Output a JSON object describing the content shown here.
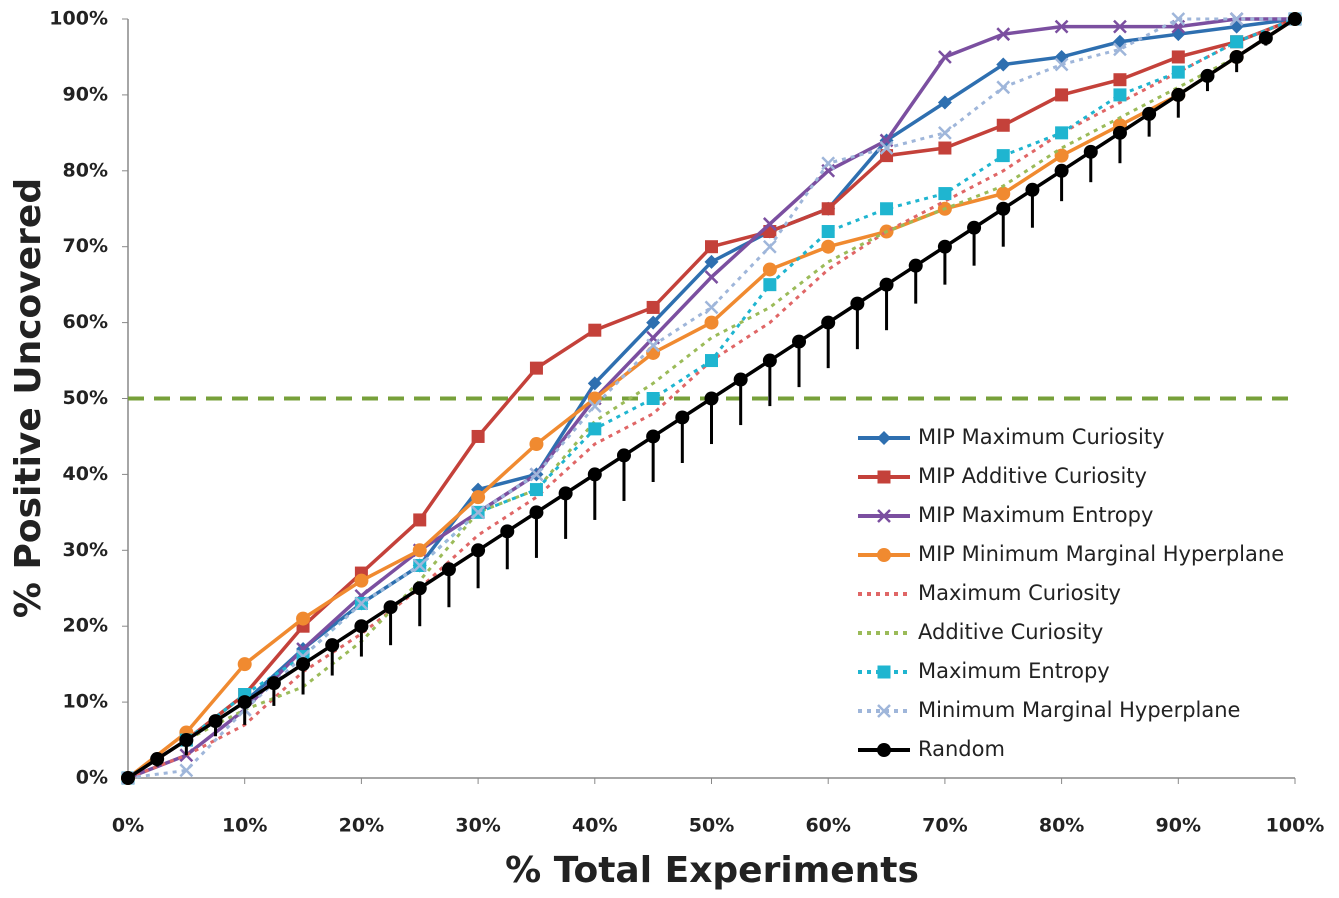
{
  "chart_data": {
    "type": "line",
    "xlabel": "% Total Experiments",
    "ylabel": "% Positive Uncovered",
    "xlim": [
      0,
      100
    ],
    "ylim": [
      0,
      100
    ],
    "xticks": [
      {
        "value": 0,
        "label": "0%"
      },
      {
        "value": 10,
        "label": "10%"
      },
      {
        "value": 20,
        "label": "20%"
      },
      {
        "value": 30,
        "label": "30%"
      },
      {
        "value": 40,
        "label": "40%"
      },
      {
        "value": 50,
        "label": "50%"
      },
      {
        "value": 60,
        "label": "60%"
      },
      {
        "value": 70,
        "label": "70%"
      },
      {
        "value": 80,
        "label": "80%"
      },
      {
        "value": 90,
        "label": "90%"
      },
      {
        "value": 100,
        "label": "100%"
      }
    ],
    "yticks": [
      {
        "value": 0,
        "label": "0%"
      },
      {
        "value": 10,
        "label": "10%"
      },
      {
        "value": 20,
        "label": "20%"
      },
      {
        "value": 30,
        "label": "30%"
      },
      {
        "value": 40,
        "label": "40%"
      },
      {
        "value": 50,
        "label": "50%"
      },
      {
        "value": 60,
        "label": "60%"
      },
      {
        "value": 70,
        "label": "70%"
      },
      {
        "value": 80,
        "label": "80%"
      },
      {
        "value": 90,
        "label": "90%"
      },
      {
        "value": 100,
        "label": "100%"
      }
    ],
    "reference_line": {
      "value": 50,
      "color": "#77a03a"
    },
    "x": [
      0,
      5,
      10,
      15,
      20,
      25,
      30,
      35,
      40,
      45,
      50,
      55,
      60,
      65,
      70,
      75,
      80,
      85,
      90,
      95,
      100
    ],
    "series": [
      {
        "name": "MIP Maximum Curiosity",
        "color": "#2e6fb0",
        "marker": "diamond",
        "dash": "solid",
        "values": [
          0,
          5,
          10,
          17,
          23,
          28,
          38,
          40,
          52,
          60,
          68,
          72,
          75,
          84,
          89,
          94,
          95,
          97,
          98,
          99,
          100
        ]
      },
      {
        "name": "MIP Additive Curiosity",
        "color": "#c4413a",
        "marker": "square",
        "dash": "solid",
        "values": [
          0,
          5,
          11,
          20,
          27,
          34,
          45,
          54,
          59,
          62,
          70,
          72,
          75,
          82,
          83,
          86,
          90,
          92,
          95,
          97,
          100
        ]
      },
      {
        "name": "MIP Maximum Entropy",
        "color": "#7b4fa0",
        "marker": "x",
        "dash": "solid",
        "values": [
          0,
          3,
          9,
          17,
          24,
          30,
          35,
          40,
          50,
          58,
          66,
          73,
          80,
          84,
          95,
          98,
          99,
          99,
          99,
          100,
          100
        ]
      },
      {
        "name": "MIP Minimum Marginal Hyperplane",
        "color": "#f08a30",
        "marker": "circle",
        "dash": "solid",
        "values": [
          0,
          6,
          15,
          21,
          26,
          30,
          37,
          44,
          50,
          56,
          60,
          67,
          70,
          72,
          75,
          77,
          82,
          86,
          90,
          95,
          100
        ]
      },
      {
        "name": "Maximum Curiosity",
        "color": "#e06666",
        "marker": "none",
        "dash": "dotted",
        "values": [
          0,
          3,
          7,
          14,
          19,
          25,
          32,
          37,
          44,
          48,
          55,
          60,
          67,
          72,
          76,
          80,
          85,
          89,
          93,
          97,
          100
        ]
      },
      {
        "name": "Additive Curiosity",
        "color": "#9bbb59",
        "marker": "none",
        "dash": "dotted",
        "values": [
          0,
          5,
          9,
          12,
          18,
          26,
          35,
          38,
          47,
          52,
          58,
          62,
          68,
          72,
          75,
          78,
          83,
          87,
          91,
          95,
          100
        ]
      },
      {
        "name": "Maximum Entropy",
        "color": "#1fb5d0",
        "marker": "square",
        "dash": "dotted",
        "values": [
          0,
          5,
          11,
          16,
          23,
          28,
          35,
          38,
          46,
          50,
          55,
          65,
          72,
          75,
          77,
          82,
          85,
          90,
          93,
          97,
          100
        ]
      },
      {
        "name": "Minimum Marginal Hyperplane",
        "color": "#9fb6da",
        "marker": "x",
        "dash": "dotted",
        "values": [
          0,
          1,
          9,
          16,
          23,
          28,
          35,
          40,
          49,
          57,
          62,
          70,
          81,
          83,
          85,
          91,
          94,
          96,
          100,
          100,
          100
        ]
      },
      {
        "name": "Random",
        "color": "#000000",
        "marker": "circle",
        "dash": "solid",
        "x": [
          0,
          2.5,
          5,
          7.5,
          10,
          12.5,
          15,
          17.5,
          20,
          22.5,
          25,
          27.5,
          30,
          32.5,
          35,
          37.5,
          40,
          42.5,
          45,
          47.5,
          50,
          52.5,
          55,
          57.5,
          60,
          62.5,
          65,
          67.5,
          70,
          72.5,
          75,
          77.5,
          80,
          82.5,
          85,
          87.5,
          90,
          92.5,
          95,
          97.5,
          100
        ],
        "values": [
          0,
          2.5,
          5,
          7.5,
          10,
          12.5,
          15,
          17.5,
          20,
          22.5,
          25,
          27.5,
          30,
          32.5,
          35,
          37.5,
          40,
          42.5,
          45,
          47.5,
          50,
          52.5,
          55,
          57.5,
          60,
          62.5,
          65,
          67.5,
          70,
          72.5,
          75,
          77.5,
          80,
          82.5,
          85,
          87.5,
          90,
          92.5,
          95,
          97.5,
          100
        ],
        "errors": [
          0,
          1,
          2,
          2,
          3,
          3,
          4,
          4,
          4,
          5,
          5,
          5,
          5,
          5,
          6,
          6,
          6,
          6,
          6,
          6,
          6,
          6,
          6,
          6,
          6,
          6,
          6,
          5,
          5,
          5,
          5,
          5,
          4,
          4,
          4,
          3,
          3,
          2,
          2,
          1,
          0
        ]
      }
    ]
  }
}
